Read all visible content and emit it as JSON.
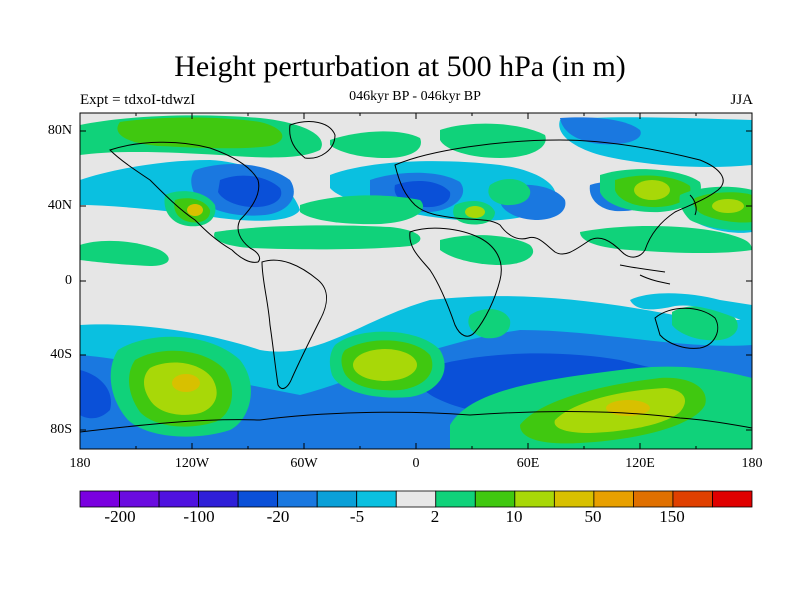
{
  "header": {
    "title": "Height perturbation at 500 hPa (in m)",
    "subtitle": "046kyr BP - 046kyr BP",
    "left_label": "Expt = tdxoI-tdwzI",
    "right_label": "JJA"
  },
  "axes": {
    "lat_labels": [
      "80N",
      "40N",
      "0",
      "40S",
      "80S"
    ],
    "lon_labels": [
      "180",
      "120W",
      "60W",
      "0",
      "60E",
      "120E",
      "180"
    ]
  },
  "colorbar": {
    "colors": [
      "#7a00e0",
      "#6a0ce0",
      "#4f12e0",
      "#2f1fd8",
      "#0a50d8",
      "#1a78e0",
      "#0aa0d8",
      "#0ac0e0",
      "#e8e8e8",
      "#10d27a",
      "#40c810",
      "#a8d808",
      "#d8c000",
      "#e8a000",
      "#e07000",
      "#e04000",
      "#e00000"
    ],
    "labels": [
      "-200",
      "-100",
      "-20",
      "-5",
      "2",
      "10",
      "50",
      "150"
    ]
  },
  "colors": {
    "background": "#e6e6e6",
    "neg_light": "#0ac0e0",
    "neg_mid": "#1a78e0",
    "neg_dark": "#0a50d8",
    "pos_light": "#10d27a",
    "pos_mid": "#40c810",
    "pos_high": "#a8d808",
    "pos_peak": "#d8c000"
  }
}
